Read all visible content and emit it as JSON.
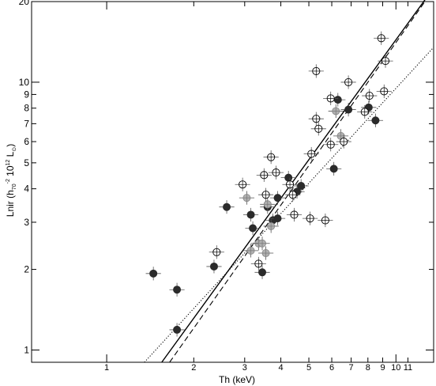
{
  "chart_data": {
    "type": "scatter",
    "xlabel": "Th (keV)",
    "ylabel_parts": {
      "main": "Lnir (h",
      "sub1": "70",
      "sup1": "-2",
      "mid": " 10",
      "sup2": "12",
      "space": " L",
      "sub2": "⊙",
      "end": ")"
    },
    "xscale": "log",
    "yscale": "log",
    "xlim": [
      0.55,
      13.5
    ],
    "ylim": [
      0.9,
      20
    ],
    "x_ticks": [
      {
        "v": 1,
        "label": "1"
      },
      {
        "v": 2,
        "label": "2"
      },
      {
        "v": 3,
        "label": "3"
      },
      {
        "v": 4,
        "label": "4"
      },
      {
        "v": 5,
        "label": "5"
      },
      {
        "v": 6,
        "label": "6"
      },
      {
        "v": 7,
        "label": "7"
      },
      {
        "v": 8,
        "label": "8"
      },
      {
        "v": 9,
        "label": "9"
      },
      {
        "v": 10,
        "label": "10"
      },
      {
        "v": 11,
        "label": "11"
      }
    ],
    "y_ticks": [
      {
        "v": 1,
        "label": "1"
      },
      {
        "v": 2,
        "label": "2"
      },
      {
        "v": 3,
        "label": "3"
      },
      {
        "v": 4,
        "label": "4"
      },
      {
        "v": 5,
        "label": "5"
      },
      {
        "v": 6,
        "label": "6"
      },
      {
        "v": 7,
        "label": "7"
      },
      {
        "v": 8,
        "label": "8"
      },
      {
        "v": 9,
        "label": "9"
      },
      {
        "v": 10,
        "label": "10"
      },
      {
        "v": 20,
        "label": "20"
      }
    ],
    "grid": false,
    "fit_lines": [
      {
        "style": "solid",
        "points": [
          [
            1.55,
            0.9
          ],
          [
            13.5,
            22.5
          ]
        ]
      },
      {
        "style": "dashed",
        "points": [
          [
            1.65,
            0.9
          ],
          [
            12.6,
            20
          ]
        ]
      },
      {
        "style": "dotted",
        "points": [
          [
            1.35,
            0.9
          ],
          [
            13.5,
            13.5
          ]
        ]
      }
    ],
    "groups": [
      {
        "marker": "filled-black",
        "color": "#2b2b2b",
        "points": [
          [
            1.45,
            1.93
          ],
          [
            1.75,
            1.68
          ],
          [
            1.75,
            1.19
          ],
          [
            2.35,
            2.05
          ],
          [
            2.6,
            3.42
          ],
          [
            3.15,
            3.2
          ],
          [
            3.2,
            2.85
          ],
          [
            3.45,
            1.95
          ],
          [
            3.6,
            3.42
          ],
          [
            3.75,
            3.05
          ],
          [
            3.9,
            3.1
          ],
          [
            3.9,
            3.7
          ],
          [
            4.25,
            4.4
          ],
          [
            4.55,
            3.9
          ],
          [
            4.7,
            4.1
          ],
          [
            6.1,
            4.75
          ],
          [
            6.3,
            8.6
          ],
          [
            6.85,
            7.9
          ],
          [
            8.05,
            8.05
          ],
          [
            8.5,
            7.2
          ]
        ]
      },
      {
        "marker": "grey-shaded",
        "color": "#b0b0b0",
        "points": [
          [
            3.05,
            3.7
          ],
          [
            3.15,
            2.35
          ],
          [
            3.35,
            2.5
          ],
          [
            3.45,
            2.5
          ],
          [
            3.55,
            2.3
          ],
          [
            3.6,
            3.5
          ],
          [
            3.7,
            2.9
          ],
          [
            6.2,
            7.8
          ],
          [
            6.45,
            6.3
          ]
        ]
      },
      {
        "marker": "open-circle",
        "color": "#000000",
        "points": [
          [
            2.4,
            2.32
          ],
          [
            2.95,
            4.15
          ],
          [
            3.35,
            2.1
          ],
          [
            3.5,
            4.5
          ],
          [
            3.55,
            3.8
          ],
          [
            3.7,
            5.25
          ],
          [
            3.85,
            4.6
          ],
          [
            4.3,
            4.15
          ],
          [
            4.4,
            3.8
          ],
          [
            4.45,
            3.2
          ],
          [
            5.05,
            3.1
          ],
          [
            5.1,
            5.4
          ],
          [
            5.3,
            11.0
          ],
          [
            5.3,
            7.3
          ],
          [
            5.4,
            6.7
          ],
          [
            5.7,
            3.05
          ],
          [
            5.95,
            5.85
          ],
          [
            5.95,
            8.7
          ],
          [
            6.6,
            6.0
          ],
          [
            6.85,
            10.0
          ],
          [
            7.8,
            7.75
          ],
          [
            8.1,
            8.9
          ],
          [
            8.9,
            14.6
          ],
          [
            9.2,
            12.0
          ],
          [
            9.1,
            9.25
          ]
        ]
      }
    ]
  }
}
